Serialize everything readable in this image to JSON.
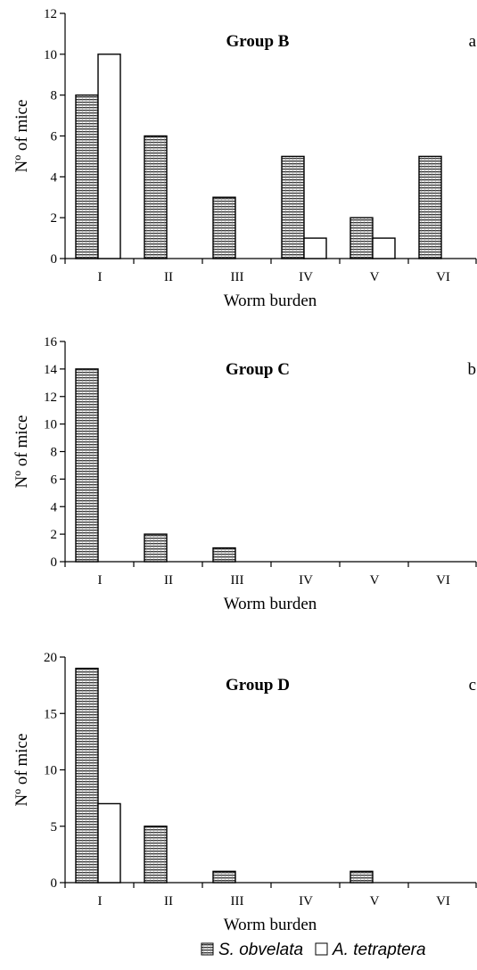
{
  "legend": {
    "items": [
      {
        "label": "S. obvelata",
        "swatch": "hatched"
      },
      {
        "label": "A. tetraptera",
        "swatch": "white"
      }
    ]
  },
  "chart_data": [
    {
      "type": "bar",
      "title": "Group B",
      "panel_letter": "a",
      "xlabel": "Worm burden",
      "ylabel": "Nº of  mice",
      "categories": [
        "I",
        "II",
        "III",
        "IV",
        "V",
        "VI"
      ],
      "ylim": [
        0,
        12
      ],
      "yticks": [
        0,
        2,
        4,
        6,
        8,
        10,
        12
      ],
      "series": [
        {
          "name": "S. obvelata",
          "values": [
            8,
            6,
            3,
            5,
            2,
            5
          ]
        },
        {
          "name": "A. tetraptera",
          "values": [
            10,
            0,
            0,
            1,
            1,
            0
          ]
        }
      ],
      "grid": false,
      "legend_position": "bottom"
    },
    {
      "type": "bar",
      "title": "Group C",
      "panel_letter": "b",
      "xlabel": "Worm burden",
      "ylabel": "Nº of  mice",
      "categories": [
        "I",
        "II",
        "III",
        "IV",
        "V",
        "VI"
      ],
      "ylim": [
        0,
        16
      ],
      "yticks": [
        0,
        2,
        4,
        6,
        8,
        10,
        12,
        14,
        16
      ],
      "series": [
        {
          "name": "S. obvelata",
          "values": [
            14,
            2,
            1,
            0,
            0,
            0
          ]
        },
        {
          "name": "A. tetraptera",
          "values": [
            0,
            0,
            0,
            0,
            0,
            0
          ]
        }
      ],
      "grid": false,
      "legend_position": "bottom"
    },
    {
      "type": "bar",
      "title": "Group D",
      "panel_letter": "c",
      "xlabel": "Worm burden",
      "ylabel": "Nº of  mice",
      "categories": [
        "I",
        "II",
        "III",
        "IV",
        "V",
        "VI"
      ],
      "ylim": [
        0,
        20
      ],
      "yticks": [
        0,
        5,
        10,
        15,
        20
      ],
      "series": [
        {
          "name": "S. obvelata",
          "values": [
            19,
            5,
            1,
            0,
            1,
            0
          ]
        },
        {
          "name": "A. tetraptera",
          "values": [
            7,
            0,
            0,
            0,
            0,
            0
          ]
        }
      ],
      "grid": false,
      "legend_position": "bottom"
    }
  ]
}
